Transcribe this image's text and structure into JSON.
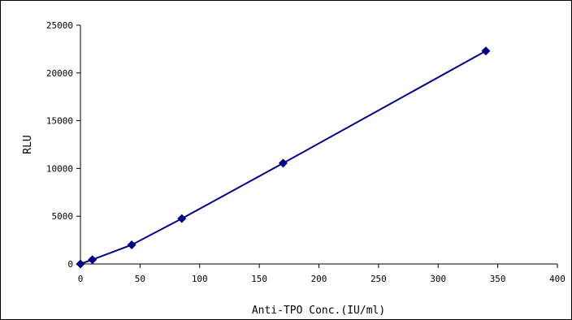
{
  "chart_data": {
    "type": "line",
    "marker": "diamond",
    "title": "",
    "xlabel": "Anti-TPO Conc.(IU/ml)",
    "ylabel": "RLU",
    "xlim": [
      0,
      400
    ],
    "ylim": [
      0,
      25000
    ],
    "xticks": [
      0,
      50,
      100,
      150,
      200,
      250,
      300,
      350,
      400
    ],
    "yticks": [
      0,
      5000,
      10000,
      15000,
      20000,
      25000
    ],
    "grid": false,
    "legend": "none",
    "colors": {
      "series": "#000080",
      "axis": "#000000"
    },
    "series": [
      {
        "x": [
          0,
          10,
          43,
          85,
          170,
          340
        ],
        "y": [
          0,
          450,
          2000,
          4750,
          10550,
          22300
        ]
      }
    ]
  }
}
